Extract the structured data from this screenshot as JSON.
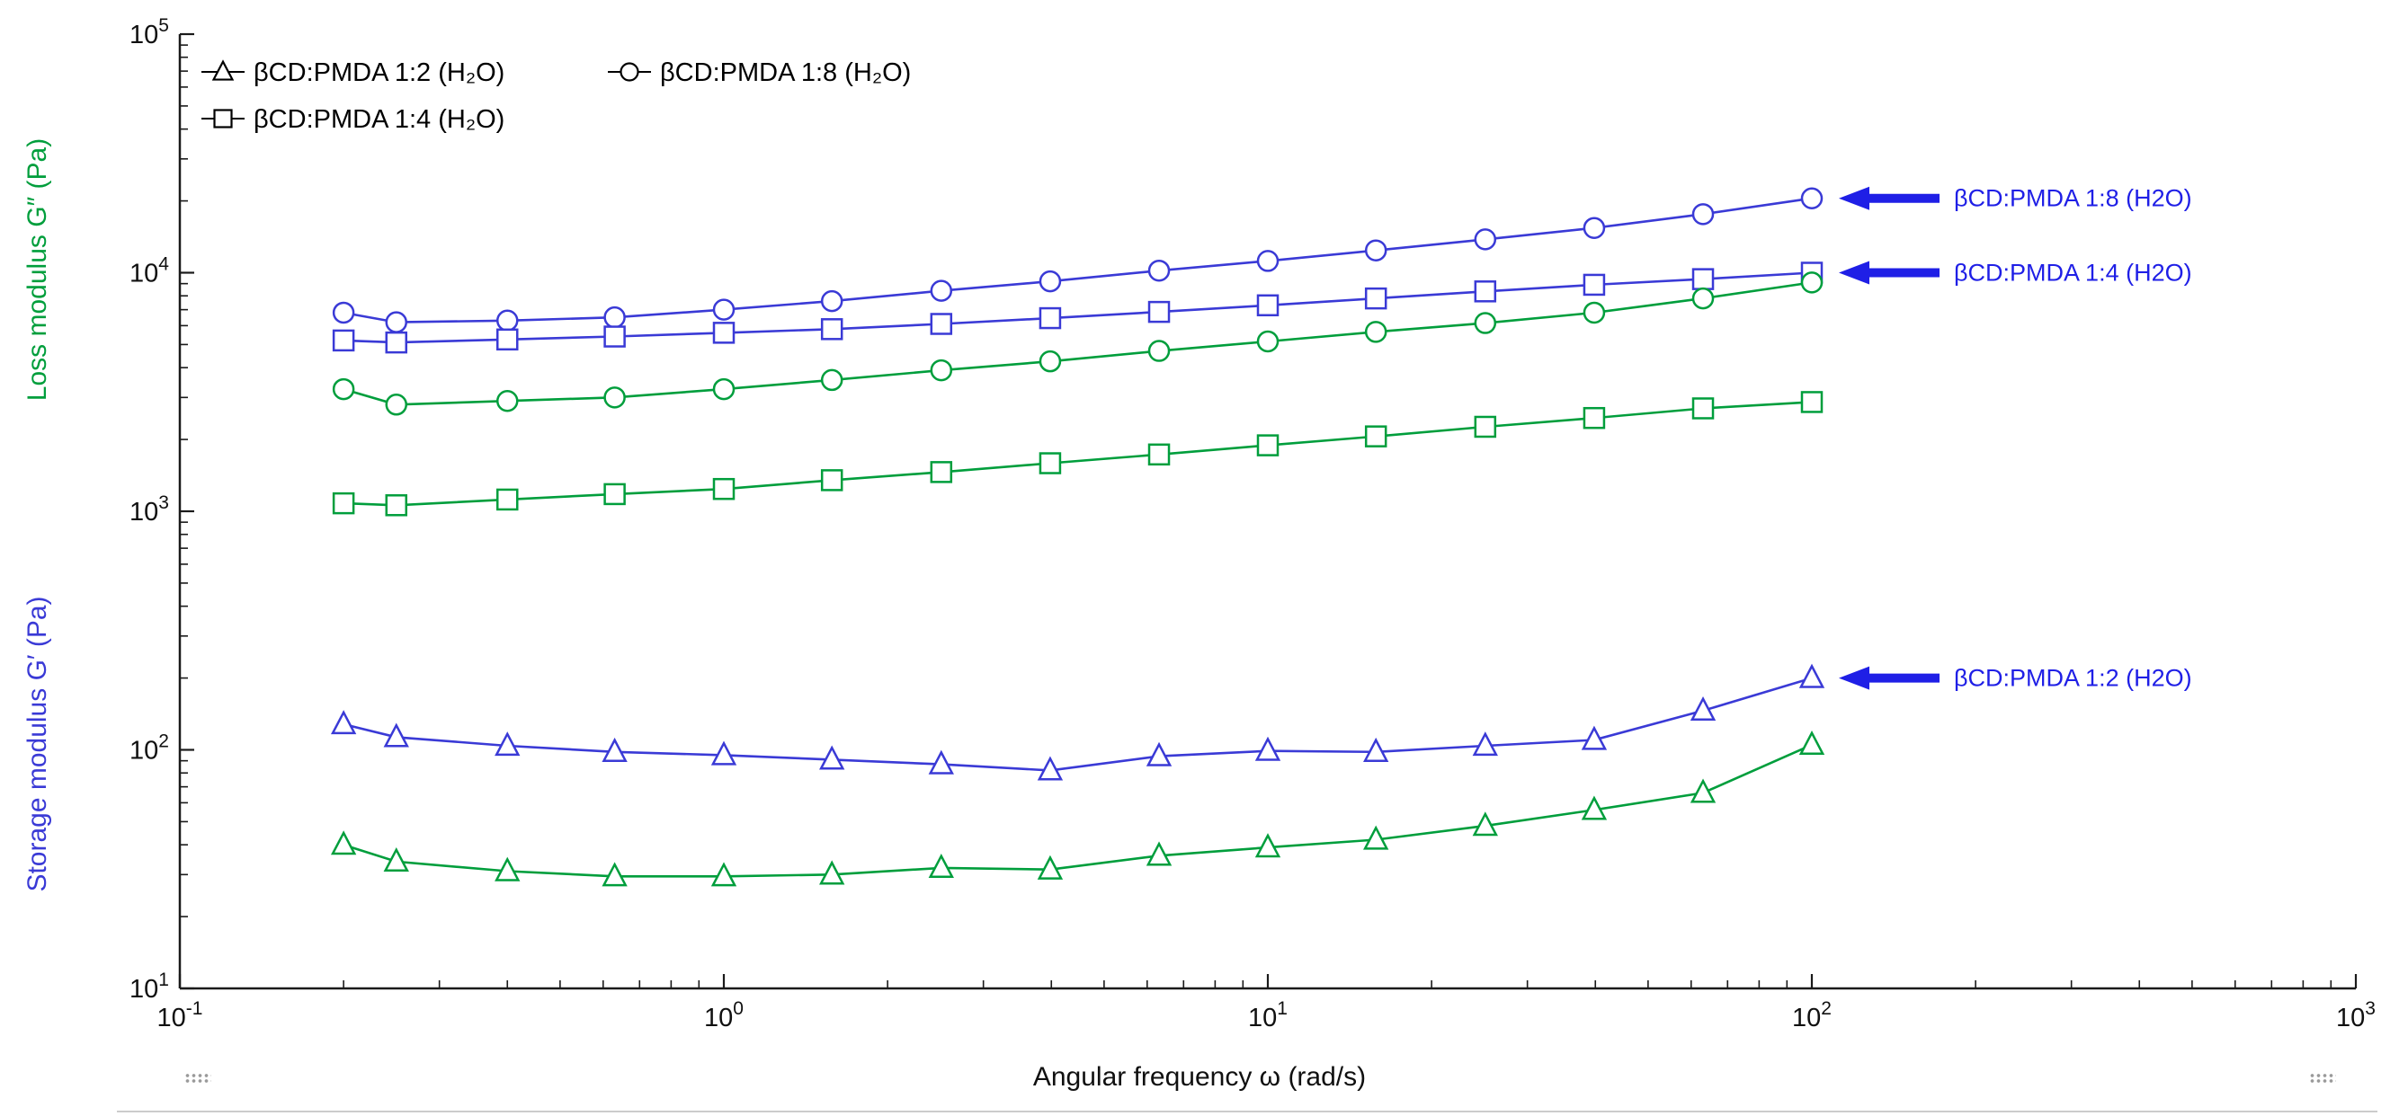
{
  "figure": {
    "background": "#ffffff"
  },
  "chart_data": {
    "type": "line",
    "x_scale": "log",
    "y_scale": "log",
    "title": "",
    "xlabel": "Angular frequency  ω  (rad/s)",
    "ylabel_loss": "Loss modulus  G″  (Pa)",
    "ylabel_storage": "Storage modulus  G′  (Pa)",
    "xlim": [
      0.1,
      1000
    ],
    "ylim": [
      10,
      100000
    ],
    "x_tick_exponents": [
      -1,
      0,
      1,
      2,
      3
    ],
    "y_tick_exponents": [
      1,
      2,
      3,
      4,
      5
    ],
    "grid": false,
    "axis_color": "#1a1a1a",
    "annotation_color": "#1f1fe6",
    "x": [
      0.2,
      0.25,
      0.4,
      0.63,
      1.0,
      1.58,
      2.51,
      3.98,
      6.31,
      10,
      15.8,
      25.1,
      39.8,
      63.1,
      100
    ],
    "series": [
      {
        "id": "g-prime-1-8",
        "name": "Storage modulus G′ — βCD:PMDA 1:8 (H2O)",
        "marker": "circle",
        "color": "#3a3ad6",
        "values": [
          6800,
          6200,
          6300,
          6500,
          7000,
          7600,
          8400,
          9200,
          10200,
          11200,
          12400,
          13800,
          15400,
          17600,
          20500
        ]
      },
      {
        "id": "g-prime-1-4",
        "name": "Storage modulus G′ — βCD:PMDA 1:4 (H2O)",
        "marker": "square",
        "color": "#3a3ad6",
        "values": [
          5200,
          5100,
          5250,
          5400,
          5600,
          5800,
          6100,
          6450,
          6850,
          7300,
          7800,
          8350,
          8900,
          9400,
          10000
        ]
      },
      {
        "id": "g-prime-1-2",
        "name": "Storage modulus G′ — βCD:PMDA 1:2 (H2O)",
        "marker": "triangle",
        "color": "#3a3ad6",
        "values": [
          128,
          113,
          104,
          98,
          95,
          91,
          87,
          82,
          94,
          99,
          98,
          104,
          110,
          146,
          200
        ]
      },
      {
        "id": "g-dbl-prime-1-8",
        "name": "Loss modulus G″ — βCD:PMDA 1:8 (H2O)",
        "marker": "circle",
        "color": "#009e3c",
        "values": [
          3250,
          2800,
          2900,
          3000,
          3250,
          3550,
          3900,
          4250,
          4700,
          5150,
          5650,
          6150,
          6800,
          7800,
          9100
        ]
      },
      {
        "id": "g-dbl-prime-1-4",
        "name": "Loss modulus G″ — βCD:PMDA 1:4 (H2O)",
        "marker": "square",
        "color": "#009e3c",
        "values": [
          1080,
          1060,
          1120,
          1180,
          1240,
          1350,
          1460,
          1590,
          1730,
          1890,
          2060,
          2260,
          2460,
          2700,
          2870
        ]
      },
      {
        "id": "g-dbl-prime-1-2",
        "name": "Loss modulus G″ — βCD:PMDA 1:2 (H2O)",
        "marker": "triangle",
        "color": "#009e3c",
        "values": [
          40,
          34,
          31,
          29.5,
          29.5,
          30,
          32,
          31.5,
          36,
          39,
          42,
          48,
          56,
          66,
          105
        ]
      }
    ],
    "legend": {
      "position": "top-left-inside",
      "color": "#000000",
      "entries": [
        {
          "marker": "triangle",
          "label": "βCD:PMDA 1:2 (H₂O)",
          "row": 0,
          "col": 0
        },
        {
          "marker": "circle",
          "label": "βCD:PMDA 1:8 (H₂O)",
          "row": 0,
          "col": 1
        },
        {
          "marker": "square",
          "label": "βCD:PMDA 1:4 (H₂O)",
          "row": 1,
          "col": 0
        }
      ]
    },
    "annotations": [
      {
        "label": "βCD:PMDA 1:8 (H2O)",
        "series": 0
      },
      {
        "label": "βCD:PMDA 1:4 (H2O)",
        "series": 1
      },
      {
        "label": "βCD:PMDA 1:2 (H2O)",
        "series": 2
      }
    ]
  }
}
